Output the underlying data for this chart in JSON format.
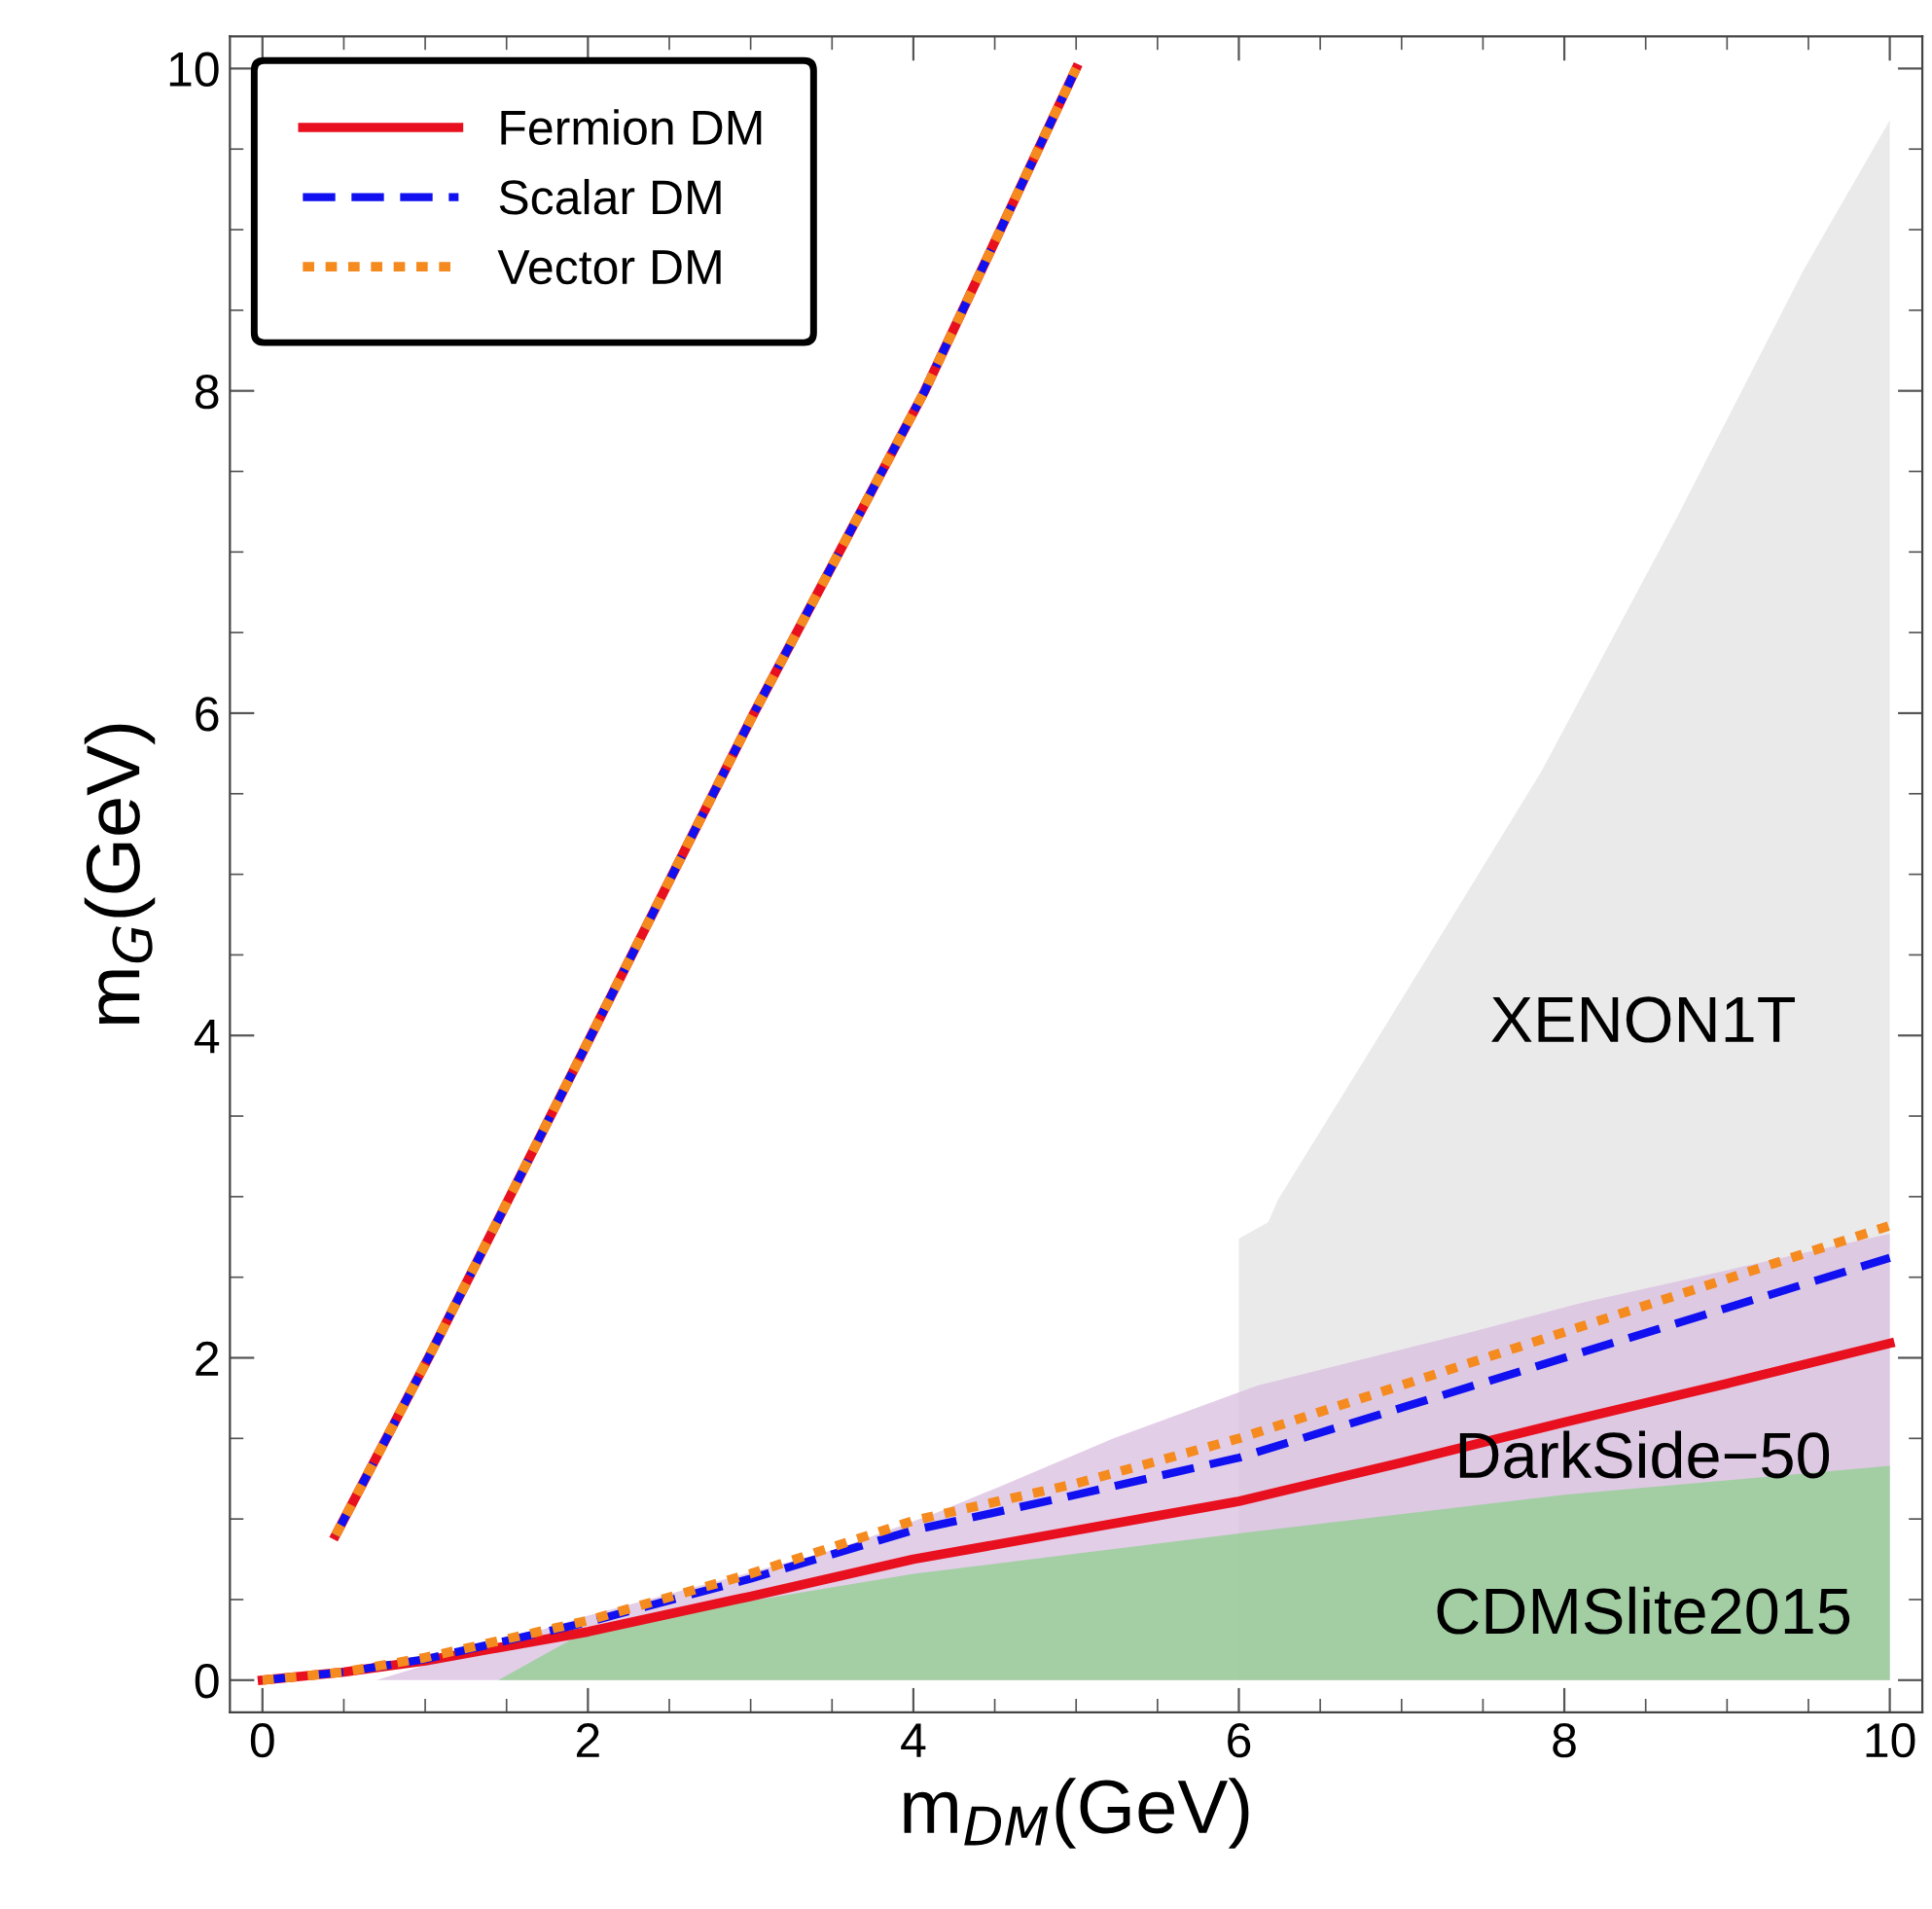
{
  "chart_data": {
    "type": "line",
    "xlabel": "m$_{DM}$(GeV)",
    "ylabel": "m$_{G}$(GeV)",
    "xlim": [
      -0.2,
      10.2
    ],
    "ylim": [
      -0.2,
      10.2
    ],
    "xticks": [
      0,
      2,
      4,
      6,
      8,
      10
    ],
    "yticks": [
      0,
      2,
      4,
      6,
      8,
      10
    ],
    "grid": false,
    "legend": "top left",
    "series": [
      {
        "type": "area",
        "color": "#e3e3e3",
        "x": [
          6.0,
          6.0,
          6.18,
          6.24,
          6.87,
          7.86,
          8.7,
          9.47,
          10.0
        ],
        "values": [
          0,
          2.74,
          2.84,
          2.98,
          4.01,
          5.64,
          7.23,
          8.75,
          9.68
        ]
      },
      {
        "type": "area",
        "color": "#d9bde0",
        "x": [
          0.7,
          2.0,
          3.52,
          4.12,
          4.6,
          5.23,
          6.12,
          7.43,
          8.1,
          10.0
        ],
        "values": [
          0,
          0.4,
          0.81,
          1.03,
          1.23,
          1.5,
          1.83,
          2.16,
          2.34,
          2.77
        ]
      },
      {
        "type": "area",
        "color": "#8fcf8f",
        "x": [
          1.45,
          2.0,
          2.7,
          4.0,
          6.0,
          8.0,
          10.0
        ],
        "values": [
          0,
          0.31,
          0.44,
          0.66,
          0.91,
          1.15,
          1.33
        ]
      },
      {
        "name": "Fermion DM",
        "color": "#e8101e",
        "line_style": "solid",
        "x": [
          0,
          0.5,
          1,
          2,
          3,
          4,
          5,
          6,
          7,
          8,
          9,
          10,
          0.45,
          1.02,
          2.02,
          3.02,
          4.07,
          5.0
        ],
        "values": [
          0,
          0.05,
          0.12,
          0.3,
          0.52,
          0.75,
          0.93,
          1.11,
          1.35,
          1.6,
          1.84,
          2.09,
          0.9,
          2,
          4,
          6,
          8,
          10
        ]
      },
      {
        "name": "Scalar DM",
        "color": "#1010f0",
        "line_style": "dashed",
        "x": [
          0,
          0.5,
          1,
          2,
          3,
          4,
          5,
          6,
          7,
          8,
          9,
          10,
          0.45,
          1.02,
          2.02,
          3.02,
          4.07,
          5.0
        ],
        "values": [
          0,
          0.05,
          0.13,
          0.36,
          0.63,
          0.93,
          1.15,
          1.38,
          1.69,
          2.0,
          2.31,
          2.62,
          0.9,
          2,
          4,
          6,
          8,
          10
        ]
      },
      {
        "name": "Vector DM",
        "color": "#f58a1f",
        "line_style": "dotted",
        "x": [
          0,
          0.5,
          1,
          2,
          3,
          4,
          5,
          6,
          7,
          8,
          9,
          10,
          0.45,
          1.02,
          2.02,
          3.02,
          4.07,
          5.0
        ],
        "values": [
          0,
          0.05,
          0.14,
          0.37,
          0.66,
          0.99,
          1.22,
          1.5,
          1.83,
          2.16,
          2.49,
          2.82,
          0.9,
          2,
          4,
          6,
          8,
          10
        ]
      }
    ],
    "annotations": [
      "XENON1T",
      "DarkSide−50",
      "CDMSlite2015"
    ]
  }
}
